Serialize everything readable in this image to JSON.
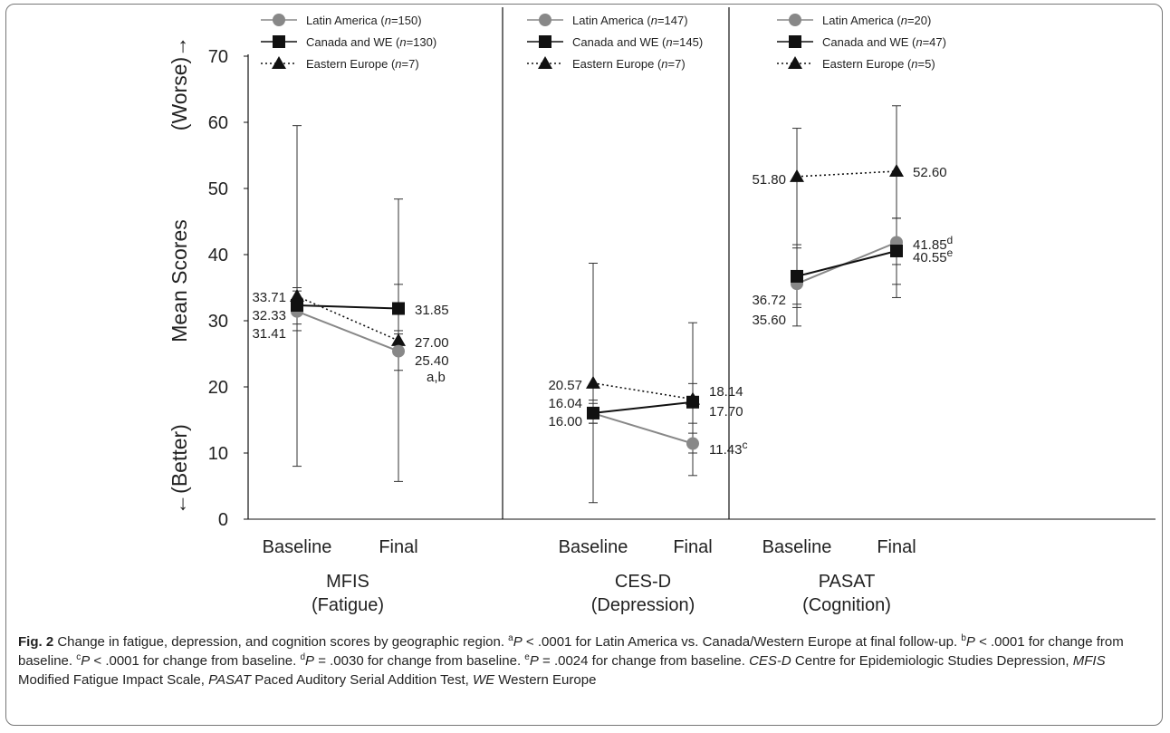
{
  "chart_data": {
    "type": "line",
    "y_axis": {
      "label_top": "(Worse)→",
      "label_middle": "Mean Scores",
      "label_bottom": "←(Better)",
      "ylim": [
        0,
        70
      ],
      "ticks": [
        "0",
        "10",
        "20",
        "30",
        "40",
        "50",
        "60",
        "70"
      ]
    },
    "categories": [
      "Baseline",
      "Final"
    ],
    "colors": {
      "latin": "#888888",
      "canada": "#111111",
      "eastern": "#111111"
    },
    "panels": [
      {
        "name_line1": "MFIS",
        "name_line2": "(Fatigue)",
        "legend": [
          {
            "key": "latin",
            "name": "Latin America",
            "n": "150"
          },
          {
            "key": "canada",
            "name": "Canada and WE",
            "n": "130"
          },
          {
            "key": "eastern",
            "name": "Eastern Europe",
            "n": "7"
          }
        ],
        "series": [
          {
            "key": "latin",
            "values": [
              31.41,
              25.4
            ],
            "err_low": [
              28.5,
              22.5
            ],
            "err_high": [
              34.5,
              28.5
            ]
          },
          {
            "key": "canada",
            "values": [
              32.33,
              31.85
            ],
            "err_low": [
              29.5,
              28.0
            ],
            "err_high": [
              35.0,
              35.5
            ]
          },
          {
            "key": "eastern",
            "values": [
              33.71,
              27.0
            ],
            "err_low": [
              8.0,
              5.7
            ],
            "err_high": [
              59.5,
              48.4
            ]
          }
        ],
        "labels": {
          "baseline": [
            "33.71",
            "32.33",
            "31.41"
          ],
          "final": [
            {
              "text": "31.85",
              "sup": ""
            },
            {
              "text": "27.00",
              "sup": ""
            },
            {
              "text": "25.40",
              "sup": ""
            },
            {
              "text": "a,b",
              "sup": ""
            }
          ]
        }
      },
      {
        "name_line1": "CES-D",
        "name_line2": "(Depression)",
        "legend": [
          {
            "key": "latin",
            "name": "Latin America",
            "n": "147"
          },
          {
            "key": "canada",
            "name": "Canada and WE",
            "n": "145"
          },
          {
            "key": "eastern",
            "name": "Eastern Europe",
            "n": "7"
          }
        ],
        "series": [
          {
            "key": "latin",
            "values": [
              16.0,
              11.43
            ],
            "err_low": [
              14.5,
              10.0
            ],
            "err_high": [
              17.5,
              13.0
            ]
          },
          {
            "key": "canada",
            "values": [
              16.04,
              17.7
            ],
            "err_low": [
              14.5,
              14.5
            ],
            "err_high": [
              18.0,
              20.5
            ]
          },
          {
            "key": "eastern",
            "values": [
              20.57,
              18.14
            ],
            "err_low": [
              2.5,
              6.6
            ],
            "err_high": [
              38.7,
              29.7
            ]
          }
        ],
        "labels": {
          "baseline": [
            "20.57",
            "16.04",
            "16.00"
          ],
          "final": [
            {
              "text": "18.14",
              "sup": ""
            },
            {
              "text": "17.70",
              "sup": ""
            },
            {
              "text": "11.43",
              "sup": "c"
            }
          ]
        }
      },
      {
        "name_line1": "PASAT",
        "name_line2": "(Cognition)",
        "legend": [
          {
            "key": "latin",
            "name": "Latin America",
            "n": "20"
          },
          {
            "key": "canada",
            "name": "Canada and WE",
            "n": "47"
          },
          {
            "key": "eastern",
            "name": "Eastern Europe",
            "n": "5"
          }
        ],
        "series": [
          {
            "key": "latin",
            "values": [
              35.6,
              41.85
            ],
            "err_low": [
              32.0,
              38.5
            ],
            "err_high": [
              41.5,
              45.5
            ]
          },
          {
            "key": "canada",
            "values": [
              36.72,
              40.55
            ],
            "err_low": [
              32.5,
              35.5
            ],
            "err_high": [
              41.0,
              45.5
            ]
          },
          {
            "key": "eastern",
            "values": [
              51.8,
              52.6
            ],
            "err_low": [
              29.2,
              33.5
            ],
            "err_high": [
              59.1,
              62.5
            ]
          }
        ],
        "labels": {
          "baseline": [
            "51.80",
            "36.72",
            "35.60"
          ],
          "final": [
            {
              "text": "52.60",
              "sup": ""
            },
            {
              "text": "41.85",
              "sup": "d"
            },
            {
              "text": "40.55",
              "sup": "e"
            }
          ]
        }
      }
    ]
  },
  "caption": {
    "label": "Fig. 2",
    "text": " Change in fatigue, depression, and cognition scores by geographic region. "
  }
}
